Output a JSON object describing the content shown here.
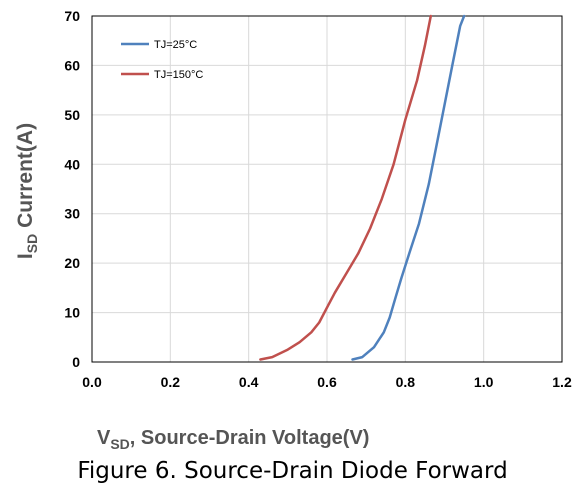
{
  "caption": "Figure 6. Source-Drain Diode Forward",
  "chart_data": {
    "type": "line",
    "title": "",
    "xlabel": {
      "main": "V",
      "sub": "SD",
      "rest": ", Source-Drain Voltage(V)"
    },
    "ylabel": {
      "main": "I",
      "sub": "SD",
      "rest": " Current(A)"
    },
    "xlim": [
      0,
      1.2
    ],
    "ylim": [
      0,
      70
    ],
    "xticks": [
      "0.0",
      "0.2",
      "0.4",
      "0.6",
      "0.8",
      "1.0",
      "1.2"
    ],
    "yticks": [
      "0",
      "10",
      "20",
      "30",
      "40",
      "50",
      "60",
      "70"
    ],
    "grid": true,
    "legend_position": "top-left",
    "series": [
      {
        "name": "TJ=25°C",
        "color": "#4f81bd",
        "x": [
          0.665,
          0.69,
          0.72,
          0.745,
          0.76,
          0.775,
          0.79,
          0.81,
          0.835,
          0.86,
          0.88,
          0.9,
          0.92,
          0.94,
          0.95
        ],
        "y": [
          0.5,
          1,
          3,
          6,
          9,
          13,
          17,
          22,
          28,
          36,
          44,
          52,
          60,
          68,
          70
        ]
      },
      {
        "name": "TJ=150°C",
        "color": "#c0504d",
        "x": [
          0.43,
          0.46,
          0.5,
          0.53,
          0.56,
          0.58,
          0.6,
          0.62,
          0.65,
          0.68,
          0.71,
          0.74,
          0.77,
          0.8,
          0.83,
          0.85,
          0.865
        ],
        "y": [
          0.5,
          1,
          2.5,
          4,
          6,
          8,
          11,
          14,
          18,
          22,
          27,
          33,
          40,
          49,
          57,
          64,
          70
        ]
      }
    ]
  }
}
